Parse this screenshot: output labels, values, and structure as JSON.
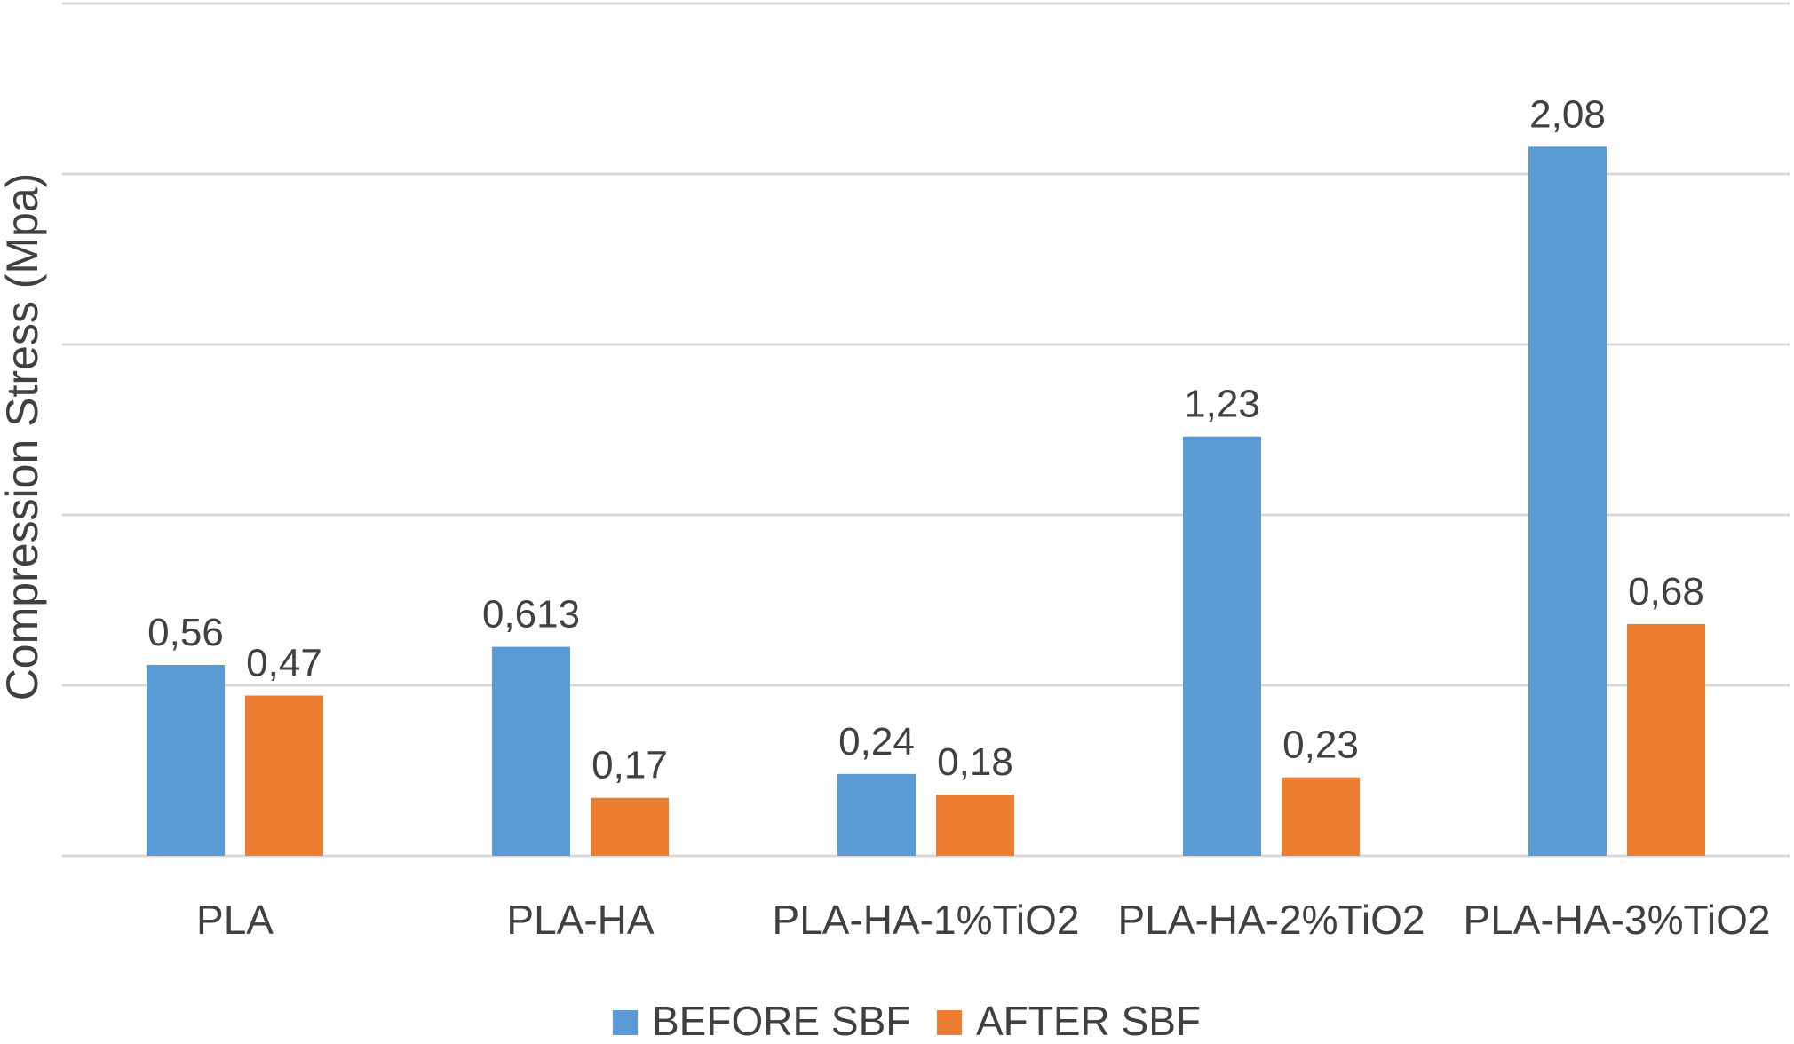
{
  "chart_data": {
    "type": "bar",
    "title": "",
    "xlabel": "",
    "ylabel": "Compression Stress (Mpa)",
    "categories": [
      "PLA",
      "PLA-HA",
      "PLA-HA-1%TiO2",
      "PLA-HA-2%TiO2",
      "PLA-HA-3%TiO2"
    ],
    "series": [
      {
        "name": "BEFORE SBF",
        "color": "#5b9bd5",
        "values": [
          0.56,
          0.613,
          0.24,
          1.23,
          2.08
        ],
        "labels": [
          "0,56",
          "0,613",
          "0,24",
          "1,23",
          "2,08"
        ]
      },
      {
        "name": "AFTER SBF",
        "color": "#ed7d31",
        "values": [
          0.47,
          0.17,
          0.18,
          0.23,
          0.68
        ],
        "labels": [
          "0,47",
          "0,17",
          "0,18",
          "0,23",
          "0,68"
        ]
      }
    ],
    "ylim": [
      0,
      2.5
    ],
    "y_gridlines": [
      0,
      0.5,
      1,
      1.5,
      2,
      2.5
    ],
    "y_tick_labels_shown": false,
    "grid": true,
    "legend": "bottom-center"
  }
}
